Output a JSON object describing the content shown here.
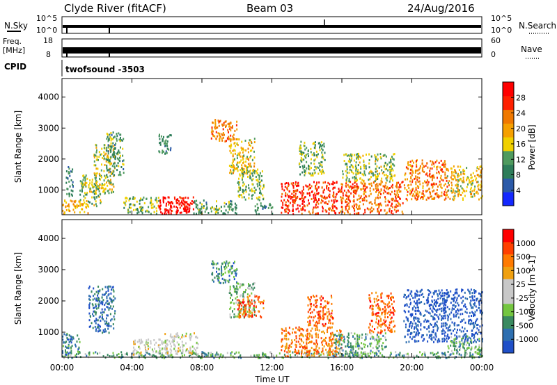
{
  "header": {
    "station": "Clyde River (fitACF)",
    "beam": "Beam 03",
    "date": "24/Aug/2016"
  },
  "strip_panels": {
    "nsky": {
      "label": "N.Sky",
      "ticks": [
        "10^5",
        "10^0"
      ]
    },
    "nsearch": {
      "label": "N.Search",
      "ticks": [
        "10^5",
        "10^0"
      ]
    },
    "freq": {
      "label_top": "Freq.",
      "label_unit": "[MHz]",
      "ticks": [
        "18",
        "8"
      ]
    },
    "nave": {
      "label": "Nave",
      "ticks": [
        "60",
        "0"
      ]
    },
    "cpid": {
      "label": "CPID",
      "value": "twofsound -3503"
    }
  },
  "colors": {
    "power_scale": [
      "#1428ff",
      "#2c5aa8",
      "#2e7d5a",
      "#4f9a5e",
      "#f0d000",
      "#f5a000",
      "#f07800",
      "#ff2000",
      "#ff0000"
    ],
    "velocity_scale": [
      "#2050c8",
      "#2e6fb0",
      "#3a8a60",
      "#74c640",
      "#c8c8c8",
      "#c8c8c8",
      "#f0a010",
      "#ff7a00",
      "#ff4000",
      "#ff0000"
    ]
  },
  "chart_data": [
    {
      "type": "heatmap",
      "name": "power",
      "ylabel": "Slant Range [km]",
      "yticks": [
        1000,
        2000,
        3000,
        4000
      ],
      "ylim": [
        200,
        4600
      ],
      "x_range_hours": [
        0,
        24
      ],
      "colorbar": {
        "label": "Power [dB]",
        "ticks": [
          "4",
          "8",
          "12",
          "16",
          "20",
          "24",
          "28"
        ]
      },
      "regions": [
        {
          "t": [
            0.0,
            1.5
          ],
          "r": [
            250,
            700
          ],
          "level": 0.6
        },
        {
          "t": [
            0.2,
            0.6
          ],
          "r": [
            800,
            1800
          ],
          "level": 0.3
        },
        {
          "t": [
            1.0,
            2.2
          ],
          "r": [
            500,
            1500
          ],
          "level": 0.45
        },
        {
          "t": [
            1.8,
            3.0
          ],
          "r": [
            900,
            2500
          ],
          "level": 0.5
        },
        {
          "t": [
            2.5,
            3.5
          ],
          "r": [
            1500,
            2900
          ],
          "level": 0.35
        },
        {
          "t": [
            3.5,
            5.5
          ],
          "r": [
            250,
            800
          ],
          "level": 0.4
        },
        {
          "t": [
            5.5,
            7.5
          ],
          "r": [
            250,
            800
          ],
          "level": 0.9
        },
        {
          "t": [
            6.0,
            7.3
          ],
          "r": [
            300,
            650
          ],
          "level": 1.0
        },
        {
          "t": [
            5.5,
            6.2
          ],
          "r": [
            2200,
            2900
          ],
          "level": 0.3
        },
        {
          "t": [
            7.5,
            10.0
          ],
          "r": [
            250,
            700
          ],
          "level": 0.35
        },
        {
          "t": [
            8.5,
            10.0
          ],
          "r": [
            2600,
            3300
          ],
          "level": 0.7
        },
        {
          "t": [
            9.5,
            11.0
          ],
          "r": [
            1500,
            2700
          ],
          "level": 0.55
        },
        {
          "t": [
            10.0,
            11.5
          ],
          "r": [
            700,
            1700
          ],
          "level": 0.4
        },
        {
          "t": [
            11.0,
            12.0
          ],
          "r": [
            250,
            600
          ],
          "level": 0.3
        },
        {
          "t": [
            12.5,
            16.0
          ],
          "r": [
            250,
            1300
          ],
          "level": 0.85
        },
        {
          "t": [
            13.5,
            15.0
          ],
          "r": [
            1500,
            2600
          ],
          "level": 0.4
        },
        {
          "t": [
            15.8,
            19.5
          ],
          "r": [
            250,
            1300
          ],
          "level": 0.75
        },
        {
          "t": [
            16.0,
            19.0
          ],
          "r": [
            1300,
            2200
          ],
          "level": 0.45
        },
        {
          "t": [
            19.5,
            22.0
          ],
          "r": [
            700,
            2000
          ],
          "level": 0.7
        },
        {
          "t": [
            22.0,
            24.0
          ],
          "r": [
            700,
            1800
          ],
          "level": 0.55
        }
      ]
    },
    {
      "type": "heatmap",
      "name": "velocity",
      "ylabel": "Slant Range [km]",
      "yticks": [
        1000,
        2000,
        3000,
        4000
      ],
      "ylim": [
        200,
        4600
      ],
      "xlabel": "Time UT",
      "xticks": [
        "00:00",
        "04:00",
        "08:00",
        "12:00",
        "16:00",
        "20:00",
        "00:00"
      ],
      "x_range_hours": [
        0,
        24
      ],
      "colorbar": {
        "label": "Velocity [m s-1]",
        "ticks": [
          "1000",
          "500",
          "100",
          "25",
          "-25",
          "-100",
          "-500",
          "-1000"
        ]
      },
      "regions": [
        {
          "t": [
            0.0,
            24.0
          ],
          "r": [
            200,
            400
          ],
          "level": 0.3
        },
        {
          "t": [
            0.0,
            1.0
          ],
          "r": [
            300,
            1000
          ],
          "level": 0.2
        },
        {
          "t": [
            1.5,
            3.0
          ],
          "r": [
            1000,
            2500
          ],
          "level": 0.15
        },
        {
          "t": [
            4.0,
            6.0
          ],
          "r": [
            300,
            800
          ],
          "level": 0.5
        },
        {
          "t": [
            5.8,
            7.8
          ],
          "r": [
            300,
            1000
          ],
          "level": 0.5
        },
        {
          "t": [
            8.5,
            10.0
          ],
          "r": [
            2600,
            3300
          ],
          "level": 0.2
        },
        {
          "t": [
            9.5,
            11.0
          ],
          "r": [
            1500,
            2600
          ],
          "level": 0.35
        },
        {
          "t": [
            10.0,
            11.5
          ],
          "r": [
            1500,
            2200
          ],
          "level": 0.8
        },
        {
          "t": [
            12.5,
            16.0
          ],
          "r": [
            250,
            1200
          ],
          "level": 0.75
        },
        {
          "t": [
            14.0,
            15.5
          ],
          "r": [
            1200,
            2200
          ],
          "level": 0.8
        },
        {
          "t": [
            15.5,
            18.5
          ],
          "r": [
            250,
            1000
          ],
          "level": 0.3
        },
        {
          "t": [
            17.5,
            19.0
          ],
          "r": [
            1000,
            2300
          ],
          "level": 0.8
        },
        {
          "t": [
            19.5,
            24.0
          ],
          "r": [
            700,
            2400
          ],
          "level": 0.05
        },
        {
          "t": [
            22.0,
            24.0
          ],
          "r": [
            300,
            900
          ],
          "level": 0.3
        }
      ]
    }
  ]
}
